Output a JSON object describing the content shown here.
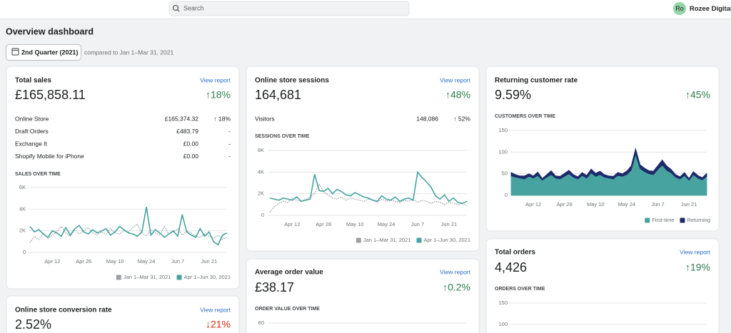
{
  "header": {
    "search_placeholder": "Search",
    "avatar": "Ro",
    "store_name": "Rozee Digital"
  },
  "page": {
    "title": "Overview dashboard",
    "date_range": "2nd Quarter (2021)",
    "comparison": "compared to Jan 1–Mar 31, 2021"
  },
  "cards": [
    {
      "title": "Total sales",
      "link": "View report",
      "value": "£165,858.11",
      "change": "↑18%",
      "change_color": "#2e7d4f",
      "rows": [
        [
          "Online Store",
          "£165,374.32",
          "↑ 18%"
        ],
        [
          "Draft Orders",
          "£483.79",
          "-"
        ],
        [
          "Exchange It",
          "£0.00",
          "-"
        ],
        [
          "Shopify Mobile for iPhone",
          "£0.00",
          "-"
        ]
      ],
      "chart": {
        "type": "line",
        "title": "SALES OVER TIME",
        "categories": [
          null,
          null,
          null,
          null,
          null,
          "Apr 12",
          null,
          null,
          null,
          null,
          null,
          null,
          "Apr 26",
          null,
          null,
          null,
          null,
          null,
          null,
          "May 10",
          null,
          null,
          null,
          null,
          null,
          null,
          "May 24",
          null,
          null,
          null,
          null,
          null,
          null,
          "Jun 7",
          null,
          null,
          null,
          null,
          null,
          null,
          "Jun 21",
          null,
          null,
          null,
          null
        ],
        "series": [
          {
            "name": "Jan 1–Mar 31, 2021",
            "color": "#9aa0a6",
            "dashed": true,
            "values": [
              900,
              1500,
              1200,
              1800,
              1300,
              1600,
              1900,
              2400,
              1800,
              1500,
              2100,
              1700,
              2000,
              2300,
              1800,
              1600,
              1900,
              1700,
              2200,
              1800,
              1700,
              2000,
              1900,
              2300,
              2600,
              1800,
              1500,
              2100,
              1800,
              1600,
              2400,
              1700,
              1900,
              2200,
              1600,
              2000,
              1800,
              1500,
              1400,
              1700,
              1500,
              1300,
              1600,
              1200,
              1400
            ]
          },
          {
            "name": "Apr 1–Jun 30, 2021",
            "color": "#47a3a0",
            "values": [
              2400,
              1900,
              2100,
              1700,
              1400,
              2000,
              1800,
              1500,
              2300,
              1600,
              2200,
              2500,
              1900,
              1700,
              2100,
              1800,
              2000,
              2200,
              1600,
              1900,
              2400,
              2100,
              1800,
              1700,
              1500,
              1900,
              4200,
              1600,
              2100,
              1800,
              1400,
              1700,
              2000,
              1500,
              3500,
              1900,
              1600,
              1400,
              2200,
              1500,
              1900,
              1000,
              700,
              1600,
              1800
            ]
          }
        ],
        "ylim": [
          0,
          6000
        ],
        "yticks": [
          0,
          {
            "value": 2000,
            "label": "2K"
          },
          {
            "value": 4000,
            "label": "4K"
          },
          {
            "value": 6000,
            "label": "6K"
          }
        ],
        "grid": true
      }
    },
    {
      "title": "Online store sessions",
      "link": "View report",
      "value": "164,681",
      "change": "↑48%",
      "change_color": "#2e7d4f",
      "rows": [
        [
          "Visitors",
          "148,086",
          "↑ 52%"
        ]
      ],
      "chart": {
        "type": "line",
        "title": "SESSIONS OVER TIME",
        "categories": [
          null,
          null,
          null,
          null,
          null,
          "Apr 12",
          null,
          null,
          null,
          null,
          null,
          null,
          "Apr 26",
          null,
          null,
          null,
          null,
          null,
          null,
          "May 10",
          null,
          null,
          null,
          null,
          null,
          null,
          "May 24",
          null,
          null,
          null,
          null,
          null,
          null,
          "Jun 7",
          null,
          null,
          null,
          null,
          null,
          null,
          "Jun 21",
          null,
          null,
          null,
          null
        ],
        "series": [
          {
            "name": "Jan 1–Mar 31, 2021",
            "color": "#9aa0a6",
            "dashed": true,
            "values": [
              300,
              800,
              1100,
              1300,
              1200,
              1600,
              1400,
              1300,
              1500,
              1700,
              2000,
              2900,
              2200,
              1900,
              1600,
              1500,
              1700,
              1400,
              1600,
              1500,
              1400,
              1300,
              1500,
              1400,
              1200,
              1500,
              1300,
              1400,
              1300,
              1200,
              1400,
              1300,
              1500,
              1200,
              1400,
              1300,
              1100,
              1300,
              1200,
              1000,
              1200,
              1100,
              1000,
              1100,
              900
            ]
          },
          {
            "name": "Apr 1–Jun 30, 2021",
            "color": "#47a3a0",
            "values": [
              1600,
              1500,
              1400,
              1600,
              1500,
              1400,
              1700,
              1300,
              1400,
              1500,
              3800,
              2300,
              2200,
              2500,
              2000,
              2400,
              2200,
              1900,
              1800,
              2100,
              1900,
              1700,
              1600,
              1400,
              1300,
              1800,
              1500,
              1400,
              1700,
              1300,
              1500,
              1600,
              1400,
              4000,
              3500,
              3100,
              2600,
              1800,
              1500,
              1900,
              1300,
              1600,
              1200,
              1100,
              1300
            ]
          }
        ],
        "ylim": [
          0,
          6000
        ],
        "yticks": [
          0,
          {
            "value": 2000,
            "label": "2K"
          },
          {
            "value": 4000,
            "label": "4K"
          },
          {
            "value": 6000,
            "label": "6K"
          }
        ],
        "grid": true
      }
    },
    {
      "title": "Returning customer rate",
      "value": "9.59%",
      "change": "↑45%",
      "change_color": "#2e7d4f",
      "chart": {
        "type": "area",
        "stacked": true,
        "title": "CUSTOMERS OVER TIME",
        "categories": [
          null,
          null,
          null,
          null,
          null,
          "Apr 12",
          null,
          null,
          null,
          null,
          null,
          null,
          "Apr 26",
          null,
          null,
          null,
          null,
          null,
          null,
          "May 10",
          null,
          null,
          null,
          null,
          null,
          null,
          "May 24",
          null,
          null,
          null,
          null,
          null,
          null,
          "Jun 7",
          null,
          null,
          null,
          null,
          null,
          null,
          "Jun 21",
          null,
          null,
          null,
          null
        ],
        "series": [
          {
            "name": "First-time",
            "color": "#47a3a0",
            "values": [
              45,
              42,
              40,
              38,
              44,
              40,
              46,
              35,
              42,
              48,
              40,
              38,
              44,
              50,
              42,
              38,
              46,
              40,
              52,
              44,
              48,
              42,
              40,
              38,
              46,
              44,
              48,
              58,
              95,
              62,
              55,
              50,
              48,
              60,
              70,
              58,
              52,
              42,
              38,
              46,
              35,
              48,
              40,
              36,
              44
            ]
          },
          {
            "name": "Returning",
            "color": "#1f2a6b",
            "values": [
              8,
              6,
              5,
              7,
              6,
              5,
              8,
              4,
              6,
              9,
              5,
              6,
              7,
              8,
              6,
              5,
              7,
              6,
              9,
              7,
              8,
              6,
              5,
              6,
              7,
              6,
              8,
              10,
              13,
              9,
              8,
              7,
              8,
              9,
              12,
              10,
              8,
              6,
              5,
              7,
              4,
              7,
              6,
              5,
              7
            ]
          }
        ],
        "ylim": [
          0,
          150
        ],
        "yticks": [
          0,
          50,
          100,
          150
        ],
        "grid": true
      }
    },
    {
      "title": "Online store conversion rate",
      "link": "View report",
      "value": "2.52%",
      "change": "↓21%",
      "change_color": "#d72c0d"
    },
    {
      "title": "Average order value",
      "link": "View report",
      "value": "£38.17",
      "change": "↑0.2%",
      "change_color": "#2e7d4f",
      "chart": {
        "type": "line",
        "title": "ORDER VALUE OVER TIME",
        "ylim": [
          0,
          60
        ],
        "yticks": [
          60
        ],
        "grid": true
      }
    },
    {
      "title": "Total orders",
      "link": "View report",
      "value": "4,426",
      "change": "↑19%",
      "change_color": "#2e7d4f",
      "chart": {
        "type": "line",
        "title": "ORDERS OVER TIME",
        "ylim": [
          0,
          150
        ],
        "yticks": [
          100,
          150
        ],
        "grid": true
      }
    }
  ]
}
